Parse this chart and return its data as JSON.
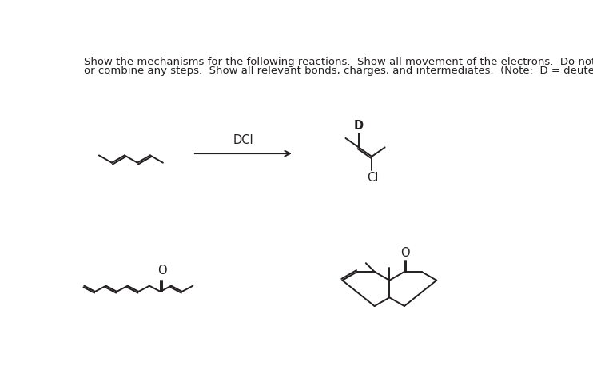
{
  "bg_color": "#ffffff",
  "text_color": "#231f20",
  "line_color": "#231f20",
  "title_line1": "Show the mechanisms for the following reactions.  Show all movement of the electrons.  Do not skip",
  "title_line2": "or combine any steps.  Show all relevant bonds, charges, and intermediates.  (Note:  D = deuterium)",
  "font_size_title": 9.5,
  "dci_label": "DCI",
  "d_label": "D",
  "cl_label": "Cl",
  "o_label1": "O",
  "o_label2": "O"
}
